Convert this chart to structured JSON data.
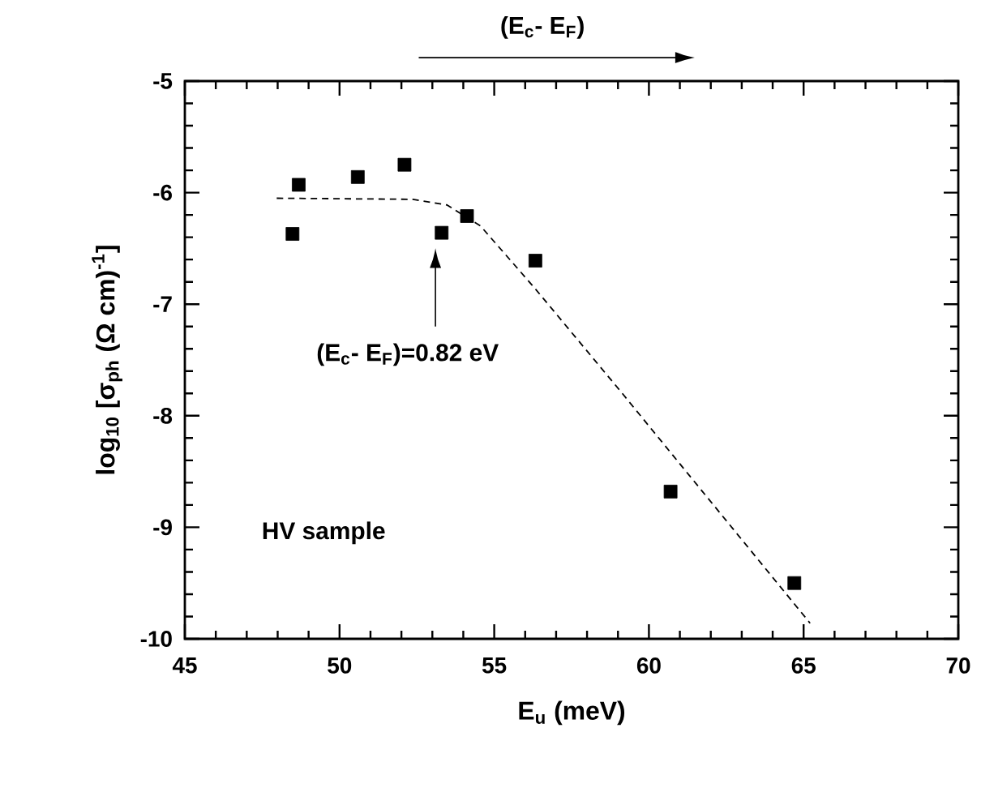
{
  "chart_data": {
    "type": "scatter",
    "xlabel": "E$_{u}$ (meV)",
    "ylabel": "log$_{10}$ [σ$_{ph}$ (Ω cm)$^{-1}$]",
    "xlim": [
      45,
      70
    ],
    "ylim": [
      -10,
      -5
    ],
    "xticks": [
      45,
      50,
      55,
      60,
      65,
      70
    ],
    "yticks": [
      -10,
      -9,
      -8,
      -7,
      -6,
      -5
    ],
    "marker": "square",
    "series": [
      {
        "color": "#000000",
        "x": [
          48.48,
          48.68,
          50.59,
          52.1,
          53.3,
          54.12,
          56.33,
          60.7,
          64.7
        ],
        "values": [
          -6.37,
          -5.93,
          -5.86,
          -5.75,
          -6.36,
          -6.21,
          -6.61,
          -8.68,
          -9.5
        ]
      },
      {
        "type": "line",
        "color": "#000000",
        "line_style": "dashed",
        "marker": "none",
        "x": [
          47.97,
          52.37,
          53.47,
          54.56,
          56.29,
          59.11,
          65.21
        ],
        "values": [
          -6.05,
          -6.06,
          -6.11,
          -6.3,
          -6.85,
          -7.79,
          -9.86
        ]
      }
    ],
    "annotations": [
      "(E$_{c}$- E$_{F}$)",
      "(E$_{c}$- E$_{F}$)=0.82 eV",
      "HV sample"
    ]
  }
}
